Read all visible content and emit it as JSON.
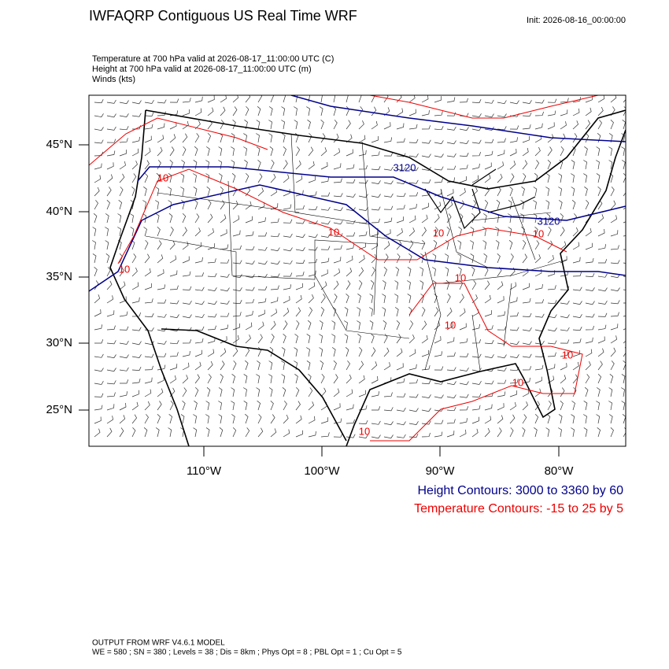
{
  "header": {
    "title": "IWFAQRP Contiguous US Real Time WRF",
    "init": "Init: 2026-08-16_00:00:00"
  },
  "fields": [
    "Temperature at 700 hPa valid at 2026-08-17_11:00:00 UTC   (C)",
    "Height at 700 hPa valid at 2026-08-17_11:00:00 UTC   (m)",
    "Winds   (kts)"
  ],
  "map": {
    "lat_labels": [
      "45°N",
      "40°N",
      "35°N",
      "30°N",
      "25°N"
    ],
    "lon_labels": [
      "110°W",
      "100°W",
      "90°W",
      "80°W"
    ],
    "height_contour_labels": [
      "3120",
      "3120"
    ],
    "temperature_contour_labels": [
      "10",
      "10",
      "10",
      "10",
      "10",
      "10",
      "10",
      "10",
      "10",
      "10"
    ]
  },
  "legend": {
    "height": "Height Contours: 3000 to 3360 by 60",
    "temperature": "Temperature Contours: -15 to 25 by 5"
  },
  "footer": {
    "model": "OUTPUT FROM WRF V4.6.1 MODEL",
    "config": "WE = 580 ; SN = 380 ; Levels = 38 ; Dis = 8km ; Phys Opt = 8 ; PBL Opt = 1 ; Cu Opt = 5"
  }
}
